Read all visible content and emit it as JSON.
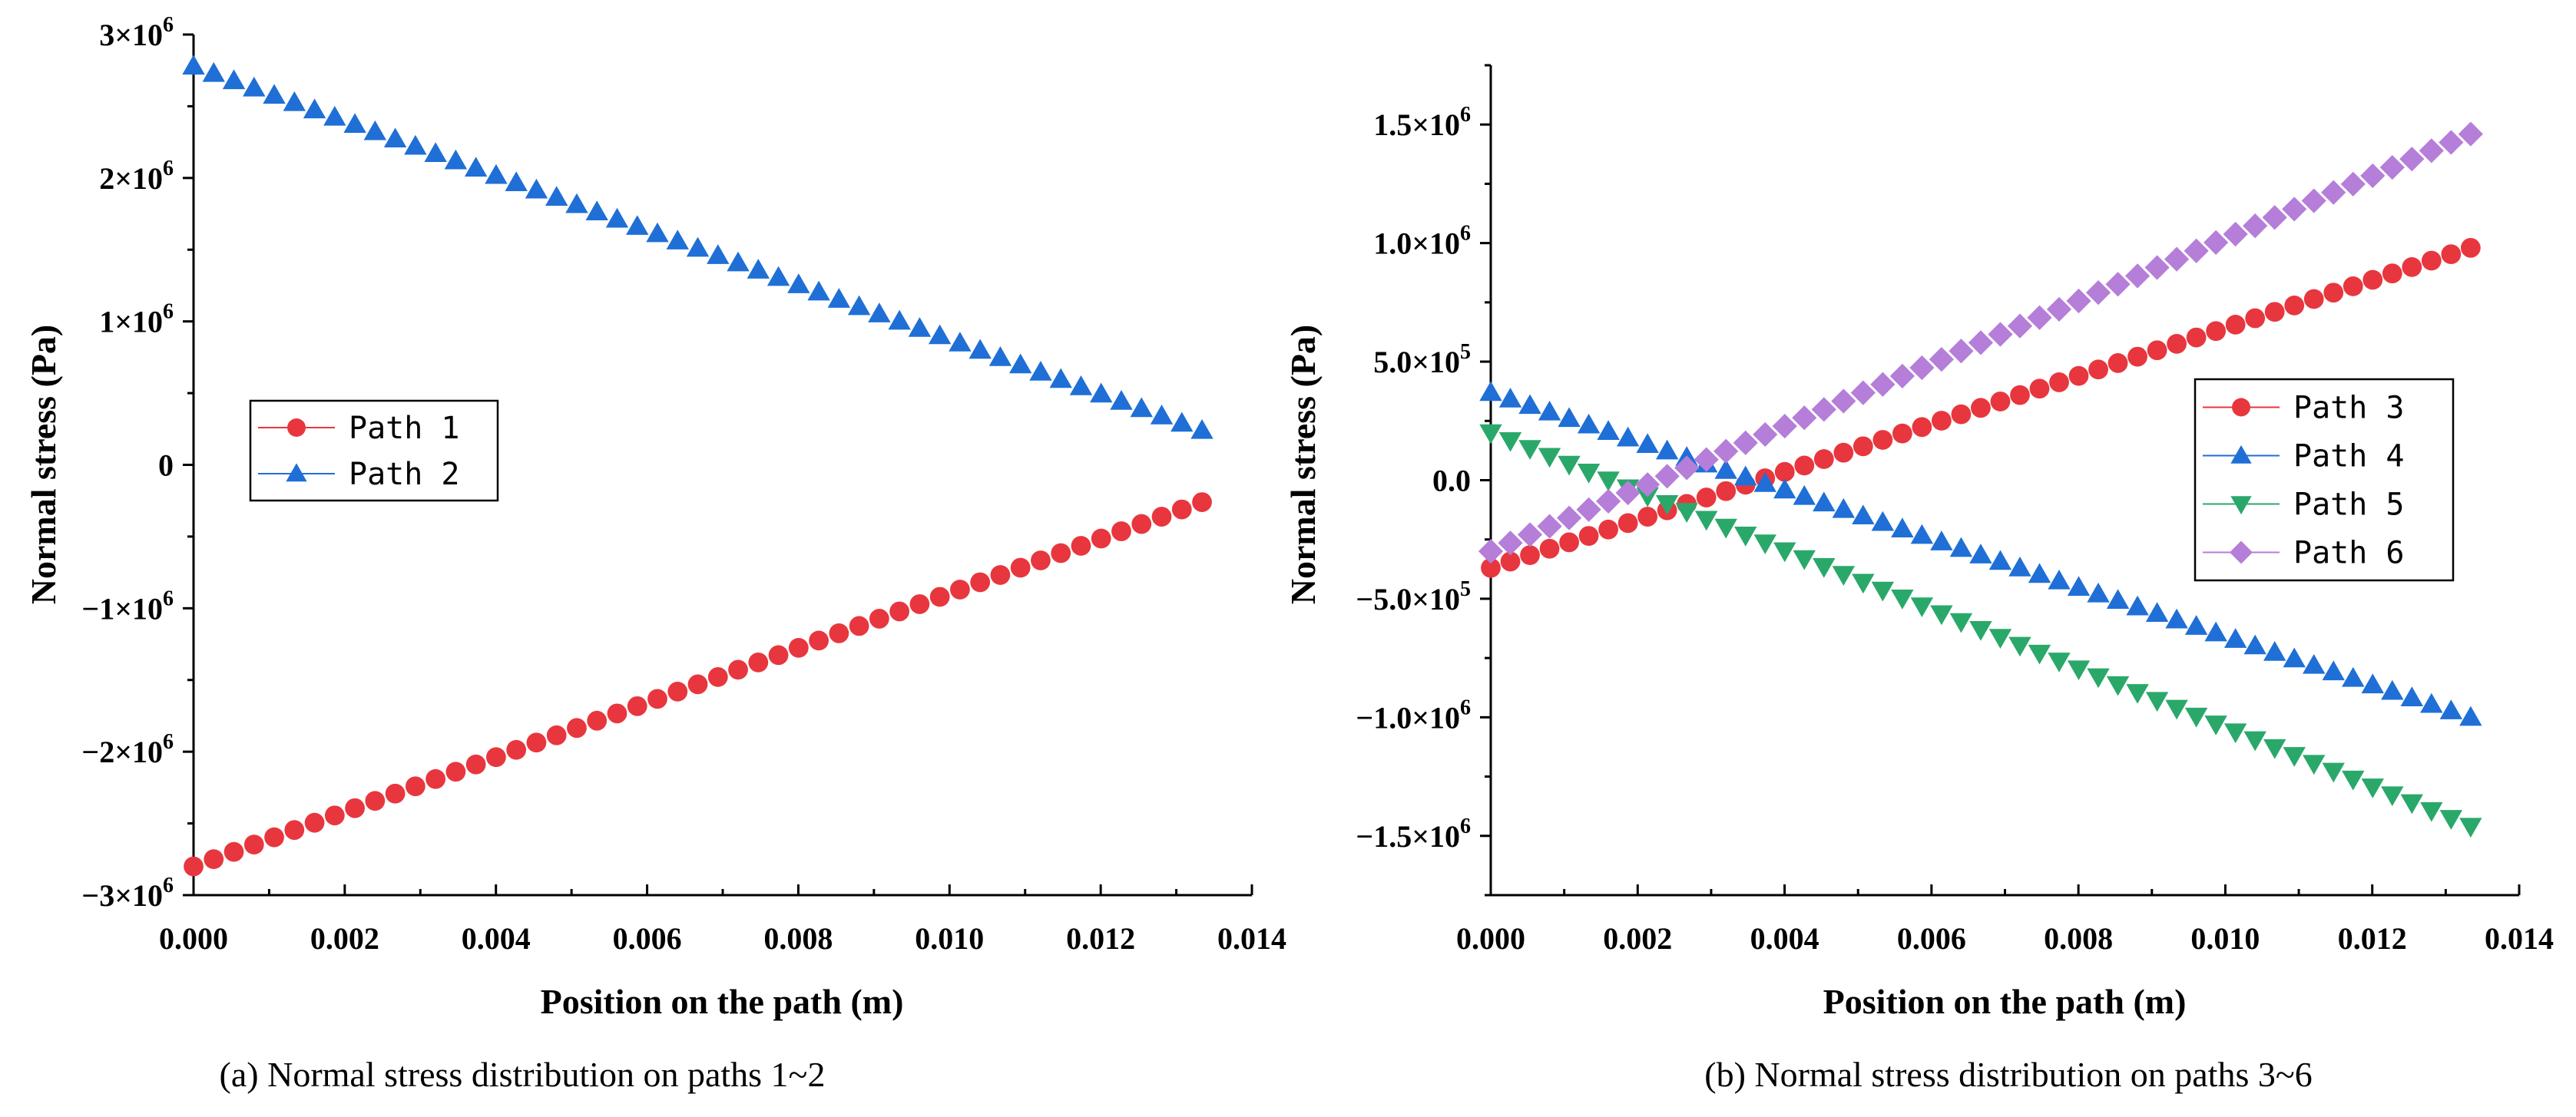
{
  "chart_data": [
    {
      "type": "scatter",
      "caption": "(a) Normal stress distribution on paths 1~2",
      "xlabel": "Position on the path (m)",
      "ylabel": "Normal stress (Pa)",
      "xlim": [
        0,
        0.014
      ],
      "ylim": [
        -3000000,
        3000000
      ],
      "xticks": [
        0,
        0.002,
        0.004,
        0.006,
        0.008,
        0.01,
        0.012,
        0.014
      ],
      "xtick_labels": [
        "0.000",
        "0.002",
        "0.004",
        "0.006",
        "0.008",
        "0.010",
        "0.012",
        "0.014"
      ],
      "yticks": [
        -3000000,
        -2000000,
        -1000000,
        0,
        1000000,
        2000000,
        3000000
      ],
      "ytick_labels": [
        {
          "base": "−3×10",
          "exp": "6"
        },
        {
          "base": "−2×10",
          "exp": "6"
        },
        {
          "base": "−1×10",
          "exp": "6"
        },
        {
          "base": "0",
          "exp": ""
        },
        {
          "base": "1×10",
          "exp": "6"
        },
        {
          "base": "2×10",
          "exp": "6"
        },
        {
          "base": "3×10",
          "exp": "6"
        }
      ],
      "legend_position": "center-left",
      "x_range": [
        0,
        0.01334
      ],
      "n_points": 51,
      "series": [
        {
          "name": "Path 1",
          "color": "#e8363e",
          "marker": "circle",
          "start": -2800000,
          "end": -260000
        },
        {
          "name": "Path 2",
          "color": "#1f6fd6",
          "marker": "triangle-up",
          "start": 2780000,
          "end": 240000
        }
      ]
    },
    {
      "type": "scatter",
      "caption": "(b) Normal stress distribution on paths 3~6",
      "xlabel": "Position on the path (m)",
      "ylabel": "Normal stress (Pa)",
      "xlim": [
        0,
        0.014
      ],
      "ylim": [
        -1750000,
        1750000
      ],
      "xticks": [
        0,
        0.002,
        0.004,
        0.006,
        0.008,
        0.01,
        0.012,
        0.014
      ],
      "xtick_labels": [
        "0.000",
        "0.002",
        "0.004",
        "0.006",
        "0.008",
        "0.010",
        "0.012",
        "0.014"
      ],
      "yticks": [
        -1500000,
        -1000000,
        -500000,
        0,
        500000,
        1000000,
        1500000
      ],
      "ytick_labels": [
        {
          "base": "−1.5×10",
          "exp": "6"
        },
        {
          "base": "−1.0×10",
          "exp": "6"
        },
        {
          "base": "−5.0×10",
          "exp": "5"
        },
        {
          "base": "0.0",
          "exp": ""
        },
        {
          "base": "5.0×10",
          "exp": "5"
        },
        {
          "base": "1.0×10",
          "exp": "6"
        },
        {
          "base": "1.5×10",
          "exp": "6"
        }
      ],
      "legend_position": "right",
      "x_range": [
        0,
        0.01334
      ],
      "n_points": 51,
      "series": [
        {
          "name": "Path 3",
          "color": "#e8363e",
          "marker": "circle",
          "start": -370000,
          "end": 980000
        },
        {
          "name": "Path 4",
          "color": "#1f6fd6",
          "marker": "triangle-up",
          "start": 370000,
          "end": -1000000
        },
        {
          "name": "Path 5",
          "color": "#2aa86a",
          "marker": "triangle-down",
          "start": 200000,
          "end": -1460000
        },
        {
          "name": "Path 6",
          "color": "#b57ed8",
          "marker": "diamond",
          "start": -300000,
          "end": 1460000
        }
      ]
    }
  ]
}
